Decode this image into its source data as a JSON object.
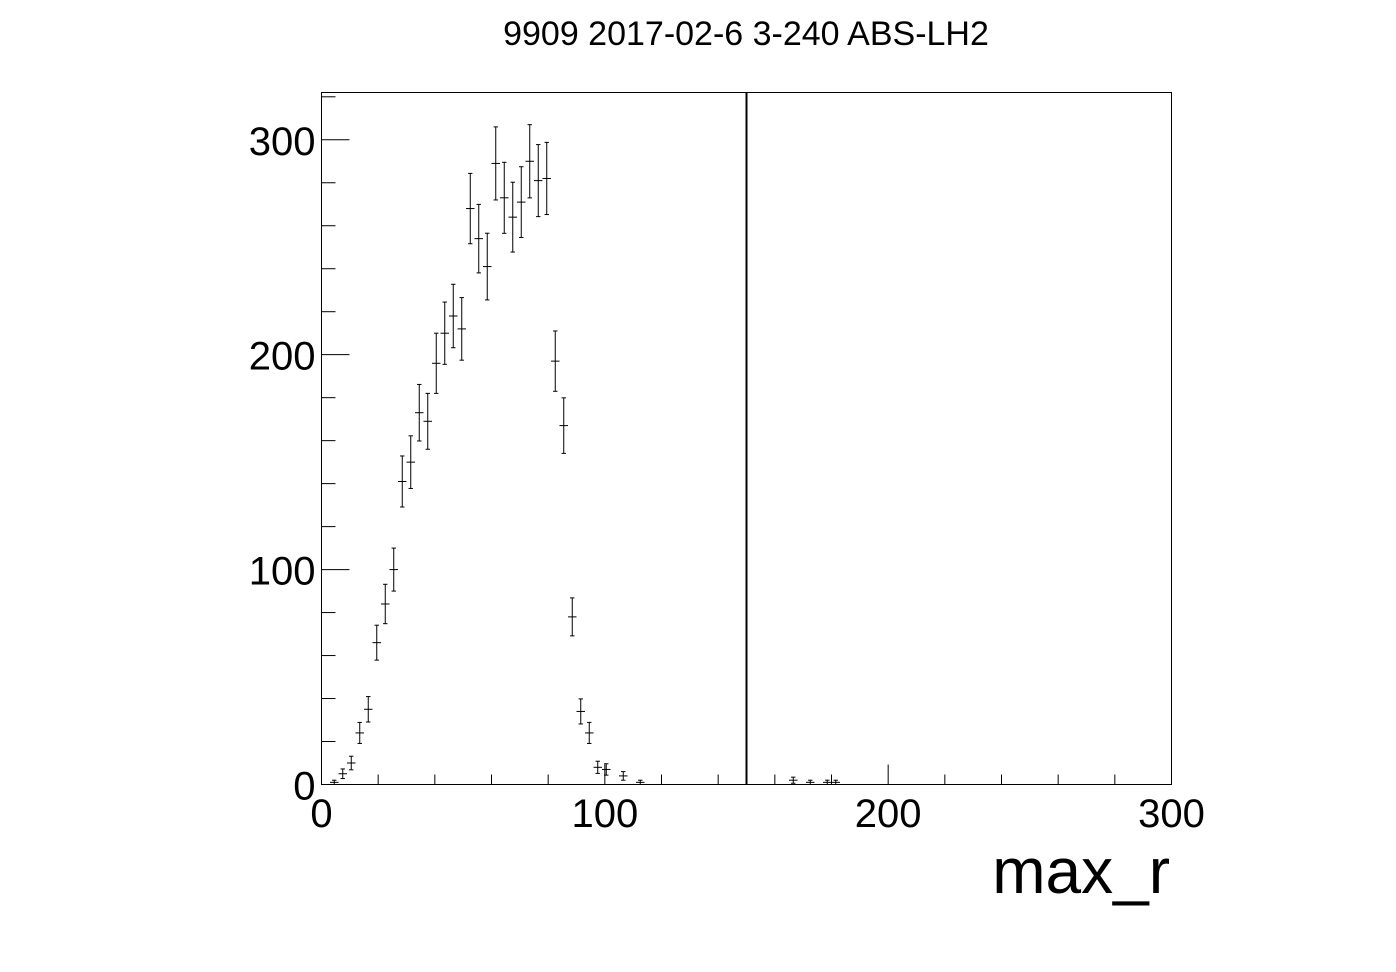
{
  "chart_data": {
    "type": "scatter",
    "title": "9909 2017-02-6 3-240 ABS-LH2",
    "xlabel": "max_r",
    "ylabel": "",
    "xlim": [
      0,
      300
    ],
    "ylim": [
      0,
      322
    ],
    "x_ticks": [
      "0",
      "100",
      "200",
      "300"
    ],
    "y_ticks": [
      "0",
      "100",
      "200",
      "300"
    ],
    "grid": false,
    "legend": "none",
    "marker_style": "error-bar cross",
    "vertical_line_x": 150,
    "points": [
      {
        "x": 4.5,
        "y": 1
      },
      {
        "x": 7.5,
        "y": 5
      },
      {
        "x": 10.5,
        "y": 10
      },
      {
        "x": 13.5,
        "y": 24
      },
      {
        "x": 16.5,
        "y": 35
      },
      {
        "x": 19.5,
        "y": 66
      },
      {
        "x": 22.5,
        "y": 84
      },
      {
        "x": 25.5,
        "y": 100
      },
      {
        "x": 28.5,
        "y": 141
      },
      {
        "x": 31.5,
        "y": 150
      },
      {
        "x": 34.5,
        "y": 173
      },
      {
        "x": 37.5,
        "y": 169
      },
      {
        "x": 40.5,
        "y": 196
      },
      {
        "x": 43.5,
        "y": 210
      },
      {
        "x": 46.5,
        "y": 218
      },
      {
        "x": 49.5,
        "y": 212
      },
      {
        "x": 52.5,
        "y": 268
      },
      {
        "x": 55.5,
        "y": 254
      },
      {
        "x": 58.5,
        "y": 241
      },
      {
        "x": 61.5,
        "y": 289
      },
      {
        "x": 64.5,
        "y": 273
      },
      {
        "x": 67.5,
        "y": 264
      },
      {
        "x": 70.5,
        "y": 271
      },
      {
        "x": 73.5,
        "y": 290
      },
      {
        "x": 76.5,
        "y": 281
      },
      {
        "x": 79.5,
        "y": 282
      },
      {
        "x": 82.5,
        "y": 197
      },
      {
        "x": 85.5,
        "y": 167
      },
      {
        "x": 88.5,
        "y": 78
      },
      {
        "x": 91.5,
        "y": 34
      },
      {
        "x": 94.5,
        "y": 24
      },
      {
        "x": 97.5,
        "y": 8
      },
      {
        "x": 100.5,
        "y": 7
      },
      {
        "x": 106.5,
        "y": 4
      },
      {
        "x": 112.5,
        "y": 1
      },
      {
        "x": 166.5,
        "y": 2
      },
      {
        "x": 172.5,
        "y": 1
      },
      {
        "x": 178.5,
        "y": 1
      },
      {
        "x": 181.5,
        "y": 1
      }
    ]
  }
}
